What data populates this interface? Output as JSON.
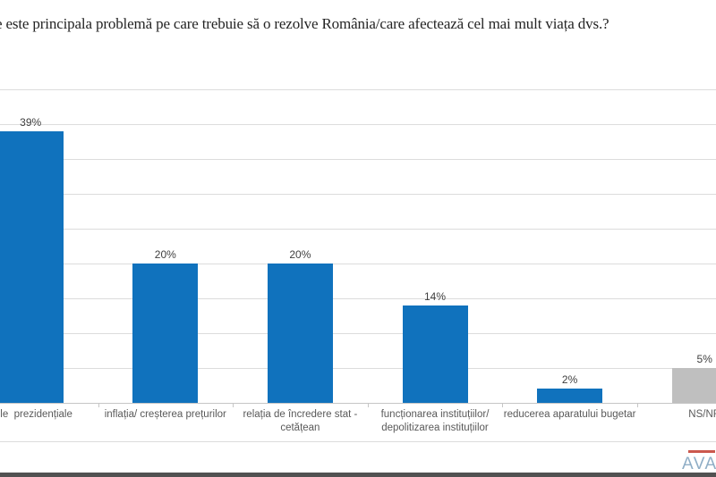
{
  "chart_data": {
    "type": "bar",
    "title": "e este principala problemă pe care trebuie să o rezolve România/care afectează cel mai mult viața dvs.?",
    "categories": [
      "erile  prezidențiale",
      "inflația/ creșterea prețurilor",
      "relația de încredere stat -\ncetățean",
      "funcționarea instituțiilor/\ndepolitizarea instituțiilor",
      "reducerea aparatului bugetar",
      "NS/NR"
    ],
    "values": [
      39,
      20,
      20,
      14,
      2,
      5
    ],
    "data_labels": [
      "39%",
      "20%",
      "20%",
      "14%",
      "2%",
      "5%"
    ],
    "bar_colors": [
      "#1072BD",
      "#1072BD",
      "#1072BD",
      "#1072BD",
      "#1072BD",
      "#BFBFBF"
    ],
    "xlabel": "",
    "ylabel": "",
    "ylim": [
      0,
      45
    ],
    "grid_step": 5,
    "grid": true,
    "legend": "none"
  },
  "footer": {
    "logo_text": "AVAN",
    "logo_color": "#8FAEC6",
    "logo_tagline_color": "#C23B2F",
    "bottom_bar_color": "#515151"
  }
}
